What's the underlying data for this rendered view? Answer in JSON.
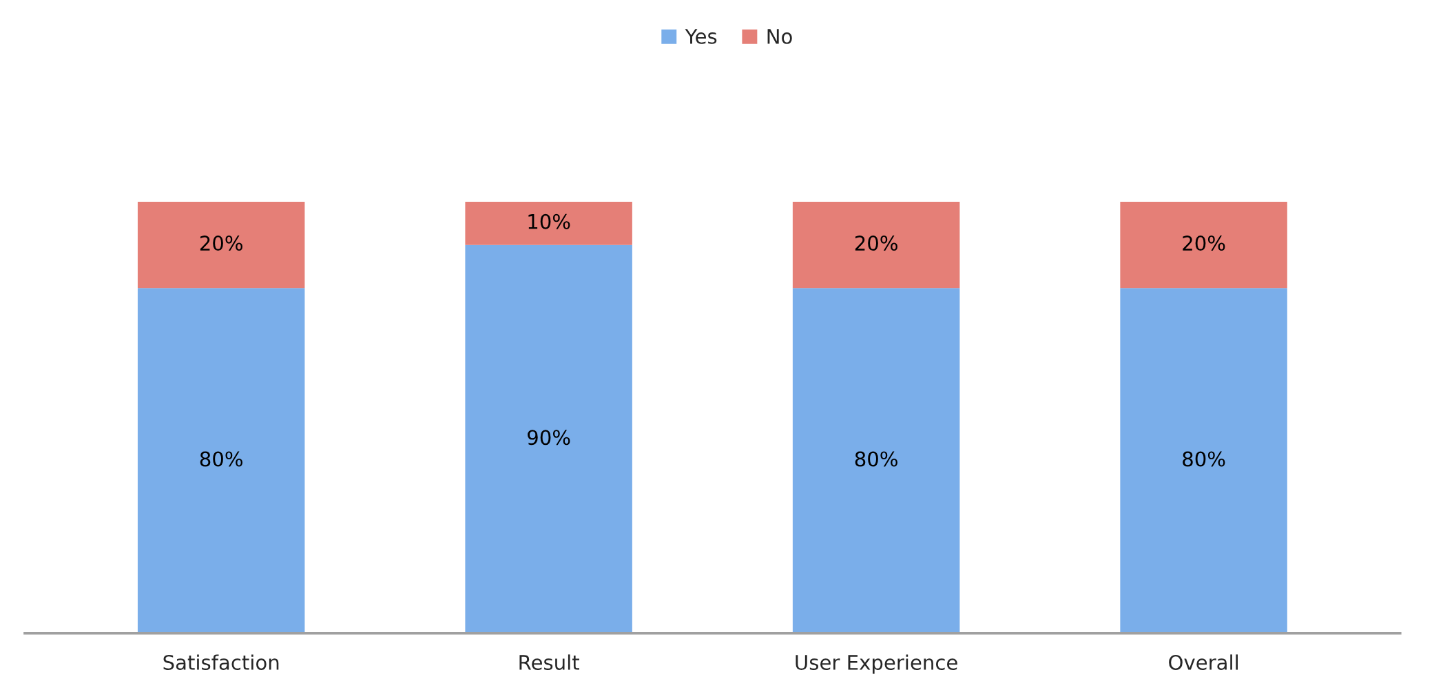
{
  "chart_data": {
    "type": "bar",
    "stacked": true,
    "categories": [
      "Satisfaction",
      "Result",
      "User Experience",
      "Overall"
    ],
    "series": [
      {
        "name": "Yes",
        "color": "#7aaeea",
        "values": [
          80,
          90,
          80,
          80
        ],
        "value_labels": [
          "80%",
          "90%",
          "80%",
          "80%"
        ]
      },
      {
        "name": "No",
        "color": "#e57f77",
        "values": [
          20,
          10,
          20,
          20
        ],
        "value_labels": [
          "20%",
          "10%",
          "20%",
          "20%"
        ]
      }
    ],
    "legend": "top",
    "grid": false
  }
}
